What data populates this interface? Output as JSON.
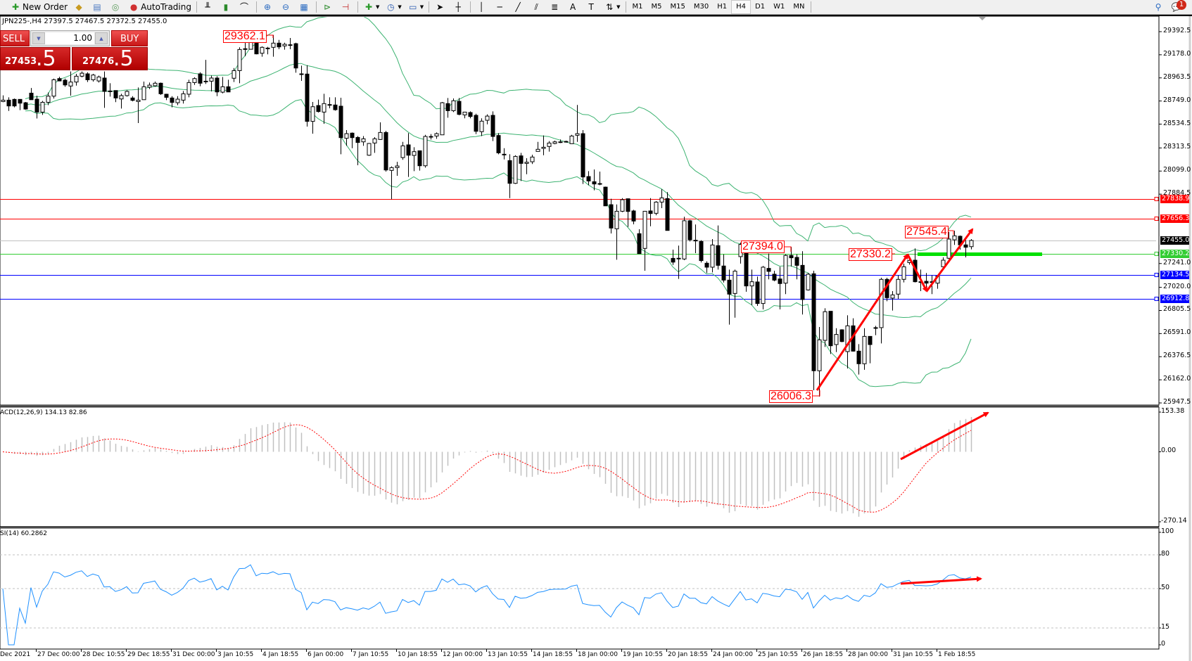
{
  "toolbar": {
    "new_order": "New Order",
    "autotrading": "AutoTrading",
    "timeframes": [
      "M1",
      "M5",
      "M15",
      "M30",
      "H1",
      "H4",
      "D1",
      "W1",
      "MN"
    ],
    "active_timeframe": "H4",
    "notification_count": "1",
    "icons": [
      "new-order-icon",
      "gold-bars-icon",
      "market-watch-icon",
      "signals-icon",
      "autotrading-icon",
      "bar-chart-icon",
      "candlestick-icon",
      "line-chart-icon",
      "zoom-in-icon",
      "zoom-out-icon",
      "tile-windows-icon",
      "auto-scroll-icon",
      "chart-shift-icon",
      "indicators-icon",
      "periods-icon",
      "templates-icon",
      "cursor-icon",
      "crosshair-icon",
      "vertical-line-icon",
      "horizontal-line-icon",
      "trendline-icon",
      "equidistant-channel-icon",
      "fibonacci-icon",
      "text-icon",
      "text-label-icon",
      "arrows-icon",
      "search-icon",
      "notification-icon"
    ]
  },
  "chart": {
    "header": "JPN225-,H4  27397.5 27467.5 27372.5 27455.0"
  },
  "trade_panel": {
    "sell_label": "SELL",
    "buy_label": "BUY",
    "lot": "1.00",
    "sell_price_main": "27453",
    "sell_price_frac": ".5",
    "buy_price_main": "27476",
    "buy_price_frac": ".5"
  },
  "chart_data": [
    {
      "type": "candlestick",
      "symbol": "JPN225-",
      "timeframe": "H4",
      "ohlc_format": [
        "open",
        "high",
        "low",
        "close"
      ],
      "candles": [
        [
          28744,
          28801,
          28738,
          28757
        ],
        [
          28757,
          28783,
          28657,
          28703
        ],
        [
          28764,
          28772,
          28690,
          28703
        ],
        [
          28764,
          28764,
          28664,
          28729
        ],
        [
          28733,
          28740,
          28668,
          28674
        ],
        [
          28822,
          28870,
          28761,
          28761
        ],
        [
          28766,
          28798,
          28587,
          28646
        ],
        [
          28646,
          28750,
          28620,
          28737
        ],
        [
          28737,
          28827,
          28711,
          28794
        ],
        [
          28794,
          28957,
          28772,
          28946
        ],
        [
          28957,
          28973,
          28935,
          28935
        ],
        [
          28942,
          28957,
          28881,
          28898
        ],
        [
          28888,
          29023,
          28799,
          28925
        ],
        [
          28925,
          29001,
          28892,
          28979
        ],
        [
          28979,
          29023,
          28968,
          29007
        ],
        [
          29001,
          29016,
          28925,
          28946
        ],
        [
          28946,
          29001,
          28929,
          28990
        ],
        [
          28935,
          28985,
          28920,
          28972
        ],
        [
          28962,
          29023,
          28685,
          28838
        ],
        [
          28842,
          28914,
          28790,
          28842
        ],
        [
          28846,
          28846,
          28738,
          28777
        ],
        [
          28768,
          28816,
          28679,
          28799
        ],
        [
          28799,
          28849,
          28790,
          28838
        ],
        [
          28777,
          28794,
          28746,
          28755
        ],
        [
          28744,
          28875,
          28544,
          28757
        ],
        [
          28761,
          28929,
          28761,
          28881
        ],
        [
          28877,
          28920,
          28860,
          28896
        ],
        [
          28890,
          28929,
          28881,
          28914
        ],
        [
          28914,
          28920,
          28805,
          28816
        ],
        [
          28812,
          28816,
          28757,
          28783
        ],
        [
          28777,
          28794,
          28690,
          28736
        ],
        [
          28733,
          28794,
          28711,
          28766
        ],
        [
          28757,
          28842,
          28725,
          28816
        ],
        [
          28812,
          28946,
          28783,
          28920
        ],
        [
          28920,
          28968,
          28898,
          28957
        ],
        [
          29001,
          29016,
          28886,
          28914
        ],
        [
          28933,
          29131,
          28907,
          28933
        ],
        [
          28933,
          28985,
          28838,
          28962
        ],
        [
          28962,
          28979,
          28794,
          28833
        ],
        [
          28831,
          28972,
          28820,
          28881
        ],
        [
          28881,
          28946,
          28833,
          28833
        ],
        [
          28960,
          29055,
          28925,
          29031
        ],
        [
          29031,
          29247,
          28914,
          29227
        ],
        [
          29234,
          29295,
          29164,
          29234
        ],
        [
          29229,
          29349,
          29229,
          29332
        ],
        [
          29338,
          29338,
          29182,
          29186
        ],
        [
          29192,
          29256,
          29160,
          29247
        ],
        [
          29238,
          29251,
          29182,
          29240
        ],
        [
          29247,
          29362.1,
          29160,
          29286
        ],
        [
          29286,
          29316,
          29229,
          29251
        ],
        [
          29260,
          29290,
          29225,
          29275
        ],
        [
          29271,
          29334,
          29229,
          29271
        ],
        [
          29281,
          29290,
          29012,
          29055
        ],
        [
          29001,
          29077,
          28936,
          29001
        ],
        [
          28999,
          29081,
          28512,
          28560
        ],
        [
          28560,
          28740,
          28446,
          28696
        ],
        [
          28707,
          28762,
          28642,
          28651
        ],
        [
          28646,
          28816,
          28537,
          28725
        ],
        [
          28716,
          28783,
          28681,
          28716
        ],
        [
          28712,
          28783,
          28659,
          28668
        ],
        [
          28701,
          28779,
          28255,
          28409
        ],
        [
          28403,
          28479,
          28333,
          28446
        ],
        [
          28451,
          28457,
          28311,
          28409
        ],
        [
          28411,
          28424,
          28153,
          28364
        ],
        [
          28370,
          28424,
          28333,
          28398
        ],
        [
          28246,
          28359,
          28240,
          28355
        ],
        [
          28359,
          28414,
          28268,
          28398
        ],
        [
          28392,
          28551,
          28388,
          28457
        ],
        [
          28457,
          28472,
          28094,
          28109
        ],
        [
          28105,
          28142,
          27837,
          28131
        ],
        [
          28131,
          28185,
          28055,
          28146
        ],
        [
          28224,
          28370,
          28203,
          28333
        ],
        [
          28342,
          28451,
          28044,
          28246
        ],
        [
          28244,
          28320,
          28098,
          28279
        ],
        [
          28287,
          28287,
          28103,
          28148
        ],
        [
          28148,
          28435,
          28131,
          28420
        ],
        [
          28420,
          28442,
          28392,
          28420
        ],
        [
          28424,
          28457,
          28398,
          28446
        ],
        [
          28435,
          28740,
          28435,
          28733
        ],
        [
          28725,
          28777,
          28594,
          28659
        ],
        [
          28659,
          28773,
          28646,
          28751
        ],
        [
          28746,
          28777,
          28616,
          28625
        ],
        [
          28620,
          28646,
          28588,
          28646
        ],
        [
          28642,
          28653,
          28588,
          28605
        ],
        [
          28616,
          28631,
          28442,
          28468
        ],
        [
          28464,
          28588,
          28424,
          28562
        ],
        [
          28570,
          28625,
          28533,
          28609
        ],
        [
          28616,
          28653,
          28377,
          28420
        ],
        [
          28429,
          28451,
          28255,
          28268
        ],
        [
          28255,
          28311,
          28207,
          28255
        ],
        [
          28196,
          28255,
          27848,
          27985
        ],
        [
          27985,
          28246,
          27979,
          28235
        ],
        [
          28240,
          28268,
          28007,
          28170
        ],
        [
          28170,
          28218,
          28070,
          28181
        ],
        [
          28185,
          28251,
          28164,
          28229
        ],
        [
          28281,
          28370,
          28281,
          28301
        ],
        [
          28309,
          28429,
          28246,
          28320
        ],
        [
          28327,
          28377,
          28279,
          28359
        ],
        [
          28355,
          28381,
          28348,
          28370
        ],
        [
          28370,
          28392,
          28359,
          28370
        ],
        [
          28374,
          28381,
          28368,
          28374
        ],
        [
          28353,
          28435,
          28353,
          28424
        ],
        [
          28431,
          28712,
          28370,
          28446
        ],
        [
          28446,
          28479,
          27979,
          28044
        ],
        [
          28048,
          28098,
          27968,
          28007
        ],
        [
          28000,
          28114,
          27920,
          27979
        ],
        [
          27983,
          28094,
          27968,
          27983
        ],
        [
          27950,
          27955,
          27776,
          27776
        ],
        [
          27787,
          27842,
          27520,
          27570
        ],
        [
          27563,
          27789,
          27276,
          27726
        ],
        [
          27726,
          27848,
          27718,
          27833
        ],
        [
          27842,
          27842,
          27581,
          27724
        ],
        [
          27729,
          27739,
          27605,
          27635
        ],
        [
          27518,
          27559,
          27333,
          27333
        ],
        [
          27381,
          27726,
          27174,
          27726
        ],
        [
          27729,
          27848,
          27587,
          27705
        ],
        [
          27707,
          27820,
          27689,
          27811
        ],
        [
          27811,
          27931,
          27755,
          27850
        ],
        [
          27844,
          27903,
          27548,
          27548
        ],
        [
          27289,
          27370,
          27228,
          27254
        ],
        [
          27290,
          27407,
          27098,
          27290
        ],
        [
          27283,
          27675,
          27272,
          27638
        ],
        [
          27638,
          27646,
          27446,
          27461
        ],
        [
          27457,
          27603,
          27337,
          27457
        ],
        [
          27446,
          27457,
          27251,
          27268
        ],
        [
          27244,
          27261,
          27153,
          27207
        ],
        [
          27207,
          27468,
          27159,
          27413
        ],
        [
          27407,
          27594,
          27185,
          27224
        ],
        [
          27218,
          27327,
          27065,
          27087
        ],
        [
          27087,
          27185,
          26674,
          26957
        ],
        [
          26963,
          27185,
          26739,
          27170
        ],
        [
          27305,
          27435,
          27240,
          27418
        ],
        [
          27420,
          27429,
          26979,
          27033
        ],
        [
          27033,
          27185,
          26855,
          27072
        ],
        [
          27070,
          27120,
          26848,
          26870
        ],
        [
          26870,
          27218,
          26815,
          27207
        ],
        [
          27196,
          27333,
          27094,
          27168
        ],
        [
          27142,
          27174,
          27076,
          27087
        ],
        [
          27098,
          27211,
          26815,
          27055
        ],
        [
          27059,
          27327,
          26957,
          27316
        ],
        [
          27316,
          27394,
          27213,
          27294
        ],
        [
          27298,
          27327,
          27094,
          27224
        ],
        [
          27224,
          27355,
          26768,
          26907
        ],
        [
          26996,
          27153,
          26990,
          27142
        ],
        [
          27146,
          27174,
          26065,
          26246
        ],
        [
          26246,
          26652,
          26006.3,
          26533
        ],
        [
          26528,
          26826,
          26467,
          26794
        ],
        [
          26798,
          26798,
          26402,
          26478
        ],
        [
          26489,
          26641,
          26420,
          26583
        ],
        [
          26626,
          26631,
          26511,
          26517
        ],
        [
          26424,
          26761,
          26267,
          26663
        ],
        [
          26663,
          26733,
          26424,
          26428
        ],
        [
          26428,
          26493,
          26211,
          26311
        ],
        [
          26311,
          26641,
          26255,
          26565
        ],
        [
          26565,
          26565,
          26315,
          26489
        ],
        [
          26646,
          26663,
          26576,
          26646
        ],
        [
          26646,
          27109,
          26500,
          27094
        ],
        [
          27094,
          27109,
          26891,
          26924
        ],
        [
          26920,
          26985,
          26805,
          26950
        ],
        [
          26957,
          27131,
          26913,
          27094
        ],
        [
          27094,
          27240,
          27066,
          27211
        ],
        [
          27250,
          27300,
          27230,
          27270
        ],
        [
          27272,
          27381,
          27066,
          27072
        ],
        [
          27072,
          27185,
          26985,
          27072
        ],
        [
          27076,
          27153,
          26985,
          27059
        ],
        [
          27072,
          27131,
          26957,
          27072
        ],
        [
          27059,
          27131,
          27007,
          27124
        ],
        [
          27211,
          27298,
          27211,
          27272
        ],
        [
          27290,
          27533,
          27283,
          27468
        ],
        [
          27461,
          27545.4,
          27414,
          27498
        ],
        [
          27494,
          27501,
          27370,
          27414
        ],
        [
          27414,
          27457,
          27298,
          27392
        ],
        [
          27397.5,
          27467.5,
          27372.5,
          27455.0
        ]
      ],
      "price_axis_ticks": [
        "29392.5",
        "29178.0",
        "28963.5",
        "28749.0",
        "28534.5",
        "28313.5",
        "28099.0",
        "27884.5",
        "27241.0",
        "27020.0",
        "26805.5",
        "26591.0",
        "26376.5",
        "26162.0",
        "25947.5"
      ],
      "price_range": [
        25947.5,
        29392.5
      ],
      "time_axis_labels": [
        "Dec 2021",
        "27 Dec 00:00",
        "28 Dec 10:55",
        "29 Dec 18:55",
        "31 Dec 00:00",
        "3 Jan 10:55",
        "4 Jan 18:55",
        "6 Jan 00:00",
        "7 Jan 10:55",
        "10 Jan 18:55",
        "12 Jan 00:00",
        "13 Jan 10:55",
        "14 Jan 18:55",
        "18 Jan 00:00",
        "19 Jan 10:55",
        "20 Jan 18:55",
        "24 Jan 00:00",
        "25 Jan 10:55",
        "26 Jan 18:55",
        "28 Jan 00:00",
        "31 Jan 10:55",
        "1 Feb 18:55"
      ],
      "horizontal_lines": [
        {
          "price": "27838.9",
          "color": "#ff0000"
        },
        {
          "price": "27656.3",
          "color": "#ff0000"
        },
        {
          "price": "27455.0",
          "color": "#c0c0c0",
          "tag_color": "#000000",
          "kind": "bid"
        },
        {
          "price": "27330.2",
          "color": "#32cd32",
          "tag_color": "#32cd32"
        },
        {
          "price": "27134.5",
          "color": "#0000ff"
        },
        {
          "price": "26912.8",
          "color": "#0000ff"
        }
      ],
      "price_labels": [
        "29362.1",
        "27394.0",
        "27330.2",
        "27545.4",
        "26006.3"
      ],
      "bollinger_color": "#3cb371",
      "annotation_color": "#ff0000"
    },
    {
      "type": "histogram+line",
      "label": "ACD(12,26,9) 134.13 82.86",
      "axis_ticks": [
        "153.38",
        "0.00",
        "-270.14"
      ],
      "range": [
        -270.14,
        153.38
      ],
      "histogram_color": "#c0c0c0",
      "signal_color": "#ff0000"
    },
    {
      "type": "line",
      "label": "SI(14) 60.2862",
      "axis_ticks": [
        "100",
        "80",
        "50",
        "15",
        "0"
      ],
      "levels": [
        80,
        50,
        15
      ],
      "range": [
        0,
        100
      ],
      "line_color": "#1e90ff"
    }
  ]
}
